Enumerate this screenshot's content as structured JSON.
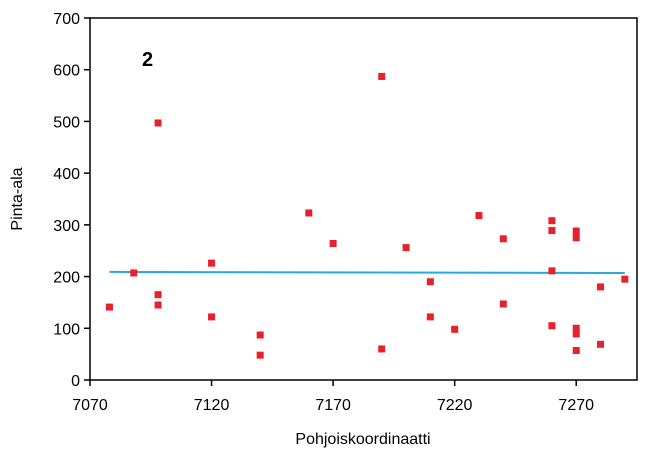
{
  "chart_data": {
    "type": "scatter",
    "panel_label": "2",
    "xlabel": "Pohjoiskoordinaatti",
    "ylabel": "Pinta-ala",
    "xlim": [
      7070,
      7295
    ],
    "ylim": [
      0,
      700
    ],
    "x_ticks": [
      7070,
      7120,
      7170,
      7220,
      7270
    ],
    "y_ticks": [
      0,
      100,
      200,
      300,
      400,
      500,
      600,
      700
    ],
    "grid": false,
    "legend": "none",
    "colors": {
      "points": "#e8202a",
      "trend": "#29a8e0",
      "axis": "#000000"
    },
    "points": [
      {
        "x": 7078,
        "y": 141
      },
      {
        "x": 7088,
        "y": 207
      },
      {
        "x": 7098,
        "y": 497
      },
      {
        "x": 7098,
        "y": 165
      },
      {
        "x": 7098,
        "y": 145
      },
      {
        "x": 7120,
        "y": 226
      },
      {
        "x": 7120,
        "y": 122
      },
      {
        "x": 7140,
        "y": 87
      },
      {
        "x": 7140,
        "y": 48
      },
      {
        "x": 7160,
        "y": 323
      },
      {
        "x": 7170,
        "y": 264
      },
      {
        "x": 7190,
        "y": 587
      },
      {
        "x": 7190,
        "y": 60
      },
      {
        "x": 7200,
        "y": 256
      },
      {
        "x": 7210,
        "y": 190
      },
      {
        "x": 7210,
        "y": 122
      },
      {
        "x": 7220,
        "y": 98
      },
      {
        "x": 7230,
        "y": 318
      },
      {
        "x": 7240,
        "y": 273
      },
      {
        "x": 7240,
        "y": 147
      },
      {
        "x": 7260,
        "y": 308
      },
      {
        "x": 7260,
        "y": 289
      },
      {
        "x": 7260,
        "y": 211
      },
      {
        "x": 7260,
        "y": 105
      },
      {
        "x": 7270,
        "y": 288
      },
      {
        "x": 7270,
        "y": 275
      },
      {
        "x": 7270,
        "y": 100
      },
      {
        "x": 7270,
        "y": 89
      },
      {
        "x": 7270,
        "y": 57
      },
      {
        "x": 7280,
        "y": 180
      },
      {
        "x": 7280,
        "y": 69
      },
      {
        "x": 7290,
        "y": 195
      }
    ],
    "trend_line": {
      "x": [
        7078,
        7290
      ],
      "y": [
        209,
        207
      ]
    }
  }
}
